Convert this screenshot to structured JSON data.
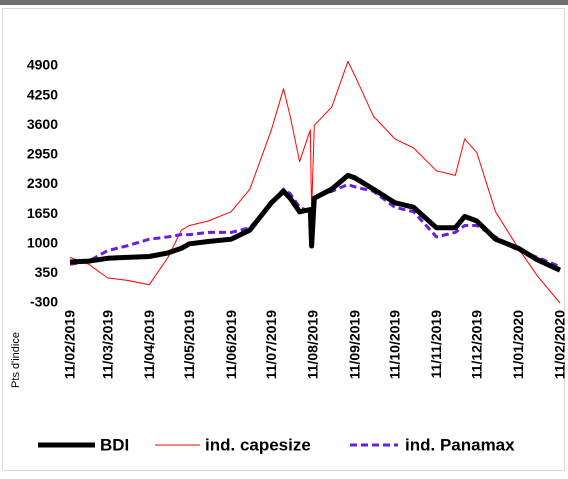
{
  "chart_data": {
    "type": "line",
    "y_label": "Pts d'indice",
    "x": [
      "11/02/2019",
      "25/02/2019",
      "11/03/2019",
      "25/03/2019",
      "11/04/2019",
      "25/04/2019",
      "05/05/2019",
      "11/05/2019",
      "25/05/2019",
      "11/06/2019",
      "25/06/2019",
      "11/07/2019",
      "20/07/2019",
      "25/07/2019",
      "01/08/2019",
      "09/08/2019",
      "10/08/2019",
      "12/08/2019",
      "25/08/2019",
      "06/09/2019",
      "11/09/2019",
      "25/09/2019",
      "11/10/2019",
      "25/10/2019",
      "11/11/2019",
      "25/11/2019",
      "02/12/2019",
      "11/12/2019",
      "25/12/2019",
      "11/01/2020",
      "25/01/2020",
      "11/02/2020"
    ],
    "series": [
      {
        "name": "BDI",
        "color": "#000000",
        "values": [
          600,
          620,
          680,
          700,
          720,
          800,
          900,
          1000,
          1050,
          1100,
          1300,
          1900,
          2150,
          2000,
          1700,
          1750,
          950,
          2000,
          2200,
          2500,
          2450,
          2200,
          1900,
          1800,
          1350,
          1350,
          1600,
          1500,
          1100,
          900,
          650,
          420
        ]
      },
      {
        "name": "ind. capesize",
        "color": "#ff0000",
        "values": [
          700,
          550,
          250,
          200,
          100,
          700,
          1300,
          1400,
          1500,
          1700,
          2200,
          3500,
          4400,
          3800,
          2800,
          3500,
          1700,
          3600,
          4000,
          5000,
          4700,
          3800,
          3300,
          3100,
          2600,
          2500,
          3300,
          3000,
          1700,
          900,
          300,
          -300
        ]
      },
      {
        "name": "ind. Panamax",
        "color": "#6a1fe0",
        "values": [
          550,
          620,
          850,
          950,
          1100,
          1150,
          1200,
          1200,
          1250,
          1250,
          1350,
          1900,
          2200,
          2100,
          1800,
          1700,
          1650,
          2000,
          2150,
          2300,
          2250,
          2150,
          1800,
          1700,
          1150,
          1250,
          1400,
          1400,
          1150,
          850,
          700,
          500
        ]
      }
    ],
    "xlim": [
      "11/02/2019",
      "11/02/2020"
    ],
    "xticks": [
      "11/02/2019",
      "11/03/2019",
      "11/04/2019",
      "11/05/2019",
      "11/06/2019",
      "11/07/2019",
      "11/08/2019",
      "11/09/2019",
      "11/10/2019",
      "11/11/2019",
      "11/12/2019",
      "11/01/2020",
      "11/02/2020"
    ],
    "ylim": [
      -300,
      4900
    ],
    "yticks": [
      -300,
      350,
      1000,
      1650,
      2300,
      2950,
      3600,
      4250,
      4900
    ],
    "grid": false
  }
}
